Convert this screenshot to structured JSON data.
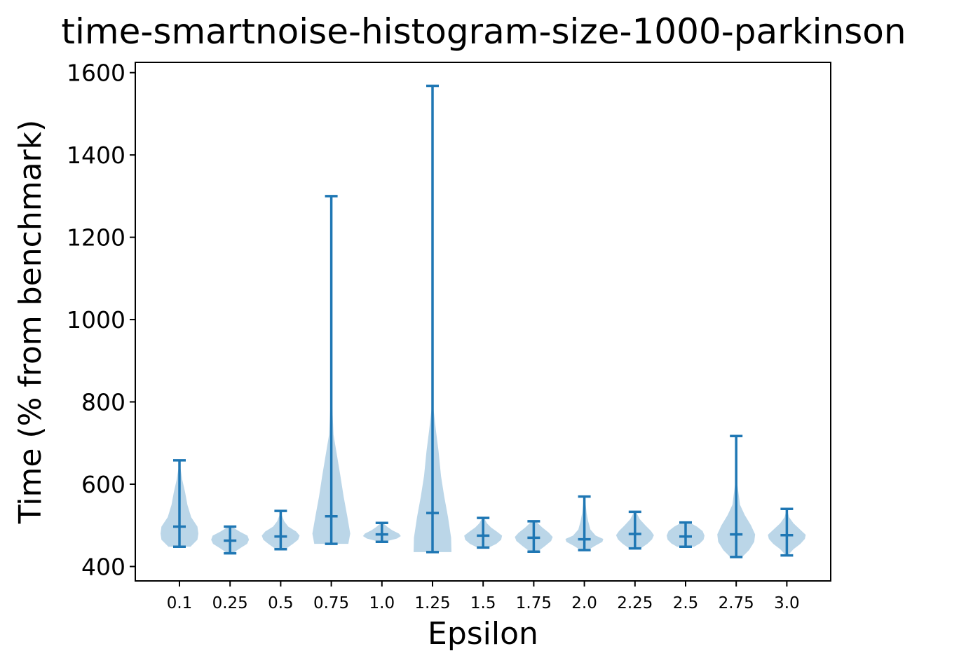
{
  "chart_data": {
    "type": "violin",
    "title": "time-smartnoise-histogram-size-1000-parkinson",
    "xlabel": "Epsilon",
    "ylabel": "Time (% from benchmark)",
    "ylim": [
      365,
      1625
    ],
    "yticks": [
      400,
      600,
      800,
      1000,
      1200,
      1400,
      1600
    ],
    "grid": false,
    "color": "#1f77b4",
    "categories": [
      "0.1",
      "0.25",
      "0.5",
      "0.75",
      "1.0",
      "1.25",
      "1.5",
      "1.75",
      "2.0",
      "2.25",
      "2.5",
      "2.75",
      "3.0"
    ],
    "violins": [
      {
        "min": 448,
        "max": 658,
        "median": 497,
        "density": [
          [
            448,
            0.58
          ],
          [
            465,
            0.95
          ],
          [
            480,
            1.0
          ],
          [
            497,
            0.95
          ],
          [
            520,
            0.62
          ],
          [
            550,
            0.42
          ],
          [
            580,
            0.3
          ],
          [
            610,
            0.15
          ],
          [
            640,
            0.05
          ],
          [
            658,
            0
          ]
        ]
      },
      {
        "min": 432,
        "max": 497,
        "median": 463,
        "density": [
          [
            432,
            0.12
          ],
          [
            445,
            0.55
          ],
          [
            455,
            0.9
          ],
          [
            465,
            1.0
          ],
          [
            475,
            0.92
          ],
          [
            485,
            0.5
          ],
          [
            497,
            0.08
          ]
        ]
      },
      {
        "min": 442,
        "max": 535,
        "median": 473,
        "density": [
          [
            442,
            0.25
          ],
          [
            455,
            0.65
          ],
          [
            465,
            0.92
          ],
          [
            475,
            1.0
          ],
          [
            485,
            0.82
          ],
          [
            497,
            0.4
          ],
          [
            510,
            0.18
          ],
          [
            525,
            0.06
          ],
          [
            535,
            0
          ]
        ]
      },
      {
        "min": 455,
        "max": 1300,
        "median": 522,
        "density": [
          [
            455,
            0.9
          ],
          [
            480,
            1.0
          ],
          [
            520,
            0.85
          ],
          [
            570,
            0.65
          ],
          [
            620,
            0.48
          ],
          [
            670,
            0.3
          ],
          [
            720,
            0.12
          ],
          [
            800,
            0.04
          ],
          [
            900,
            0.02
          ],
          [
            1100,
            0.01
          ],
          [
            1300,
            0
          ]
        ]
      },
      {
        "min": 460,
        "max": 506,
        "median": 478,
        "density": [
          [
            462,
            0.3
          ],
          [
            468,
            0.8
          ],
          [
            474,
            1.0
          ],
          [
            480,
            0.9
          ],
          [
            488,
            0.55
          ],
          [
            496,
            0.3
          ],
          [
            506,
            0.05
          ]
        ]
      },
      {
        "min": 435,
        "max": 1568,
        "median": 530,
        "density": [
          [
            435,
            1.0
          ],
          [
            470,
            0.98
          ],
          [
            520,
            0.82
          ],
          [
            570,
            0.62
          ],
          [
            620,
            0.45
          ],
          [
            680,
            0.32
          ],
          [
            730,
            0.18
          ],
          [
            780,
            0.06
          ],
          [
            900,
            0.02
          ],
          [
            1100,
            0.01
          ],
          [
            1300,
            0.01
          ],
          [
            1568,
            0
          ]
        ]
      },
      {
        "min": 446,
        "max": 518,
        "median": 475,
        "density": [
          [
            446,
            0.3
          ],
          [
            455,
            0.7
          ],
          [
            465,
            0.95
          ],
          [
            475,
            1.0
          ],
          [
            485,
            0.72
          ],
          [
            495,
            0.42
          ],
          [
            505,
            0.2
          ],
          [
            518,
            0.05
          ]
        ]
      },
      {
        "min": 436,
        "max": 510,
        "median": 470,
        "density": [
          [
            436,
            0.2
          ],
          [
            450,
            0.6
          ],
          [
            462,
            0.92
          ],
          [
            472,
            1.0
          ],
          [
            482,
            0.8
          ],
          [
            495,
            0.45
          ],
          [
            510,
            0.1
          ]
        ]
      },
      {
        "min": 440,
        "max": 570,
        "median": 466,
        "density": [
          [
            440,
            0.2
          ],
          [
            450,
            0.55
          ],
          [
            460,
            0.95
          ],
          [
            467,
            1.0
          ],
          [
            475,
            0.6
          ],
          [
            490,
            0.32
          ],
          [
            510,
            0.2
          ],
          [
            530,
            0.12
          ],
          [
            555,
            0.06
          ],
          [
            570,
            0
          ]
        ]
      },
      {
        "min": 444,
        "max": 533,
        "median": 479,
        "density": [
          [
            444,
            0.3
          ],
          [
            455,
            0.65
          ],
          [
            466,
            0.9
          ],
          [
            476,
            1.0
          ],
          [
            486,
            0.85
          ],
          [
            500,
            0.55
          ],
          [
            515,
            0.25
          ],
          [
            533,
            0.05
          ]
        ]
      },
      {
        "min": 448,
        "max": 507,
        "median": 473,
        "density": [
          [
            448,
            0.45
          ],
          [
            456,
            0.75
          ],
          [
            465,
            0.95
          ],
          [
            475,
            1.0
          ],
          [
            486,
            0.9
          ],
          [
            497,
            0.6
          ],
          [
            507,
            0.2
          ]
        ]
      },
      {
        "min": 423,
        "max": 717,
        "median": 478,
        "density": [
          [
            423,
            0.32
          ],
          [
            440,
            0.68
          ],
          [
            460,
            0.95
          ],
          [
            478,
            1.0
          ],
          [
            500,
            0.78
          ],
          [
            525,
            0.45
          ],
          [
            550,
            0.2
          ],
          [
            600,
            0.06
          ],
          [
            650,
            0.02
          ],
          [
            717,
            0
          ]
        ]
      },
      {
        "min": 427,
        "max": 540,
        "median": 476,
        "density": [
          [
            427,
            0.05
          ],
          [
            442,
            0.35
          ],
          [
            455,
            0.72
          ],
          [
            467,
            0.95
          ],
          [
            477,
            1.0
          ],
          [
            490,
            0.7
          ],
          [
            505,
            0.35
          ],
          [
            520,
            0.12
          ],
          [
            540,
            0
          ]
        ]
      }
    ]
  }
}
